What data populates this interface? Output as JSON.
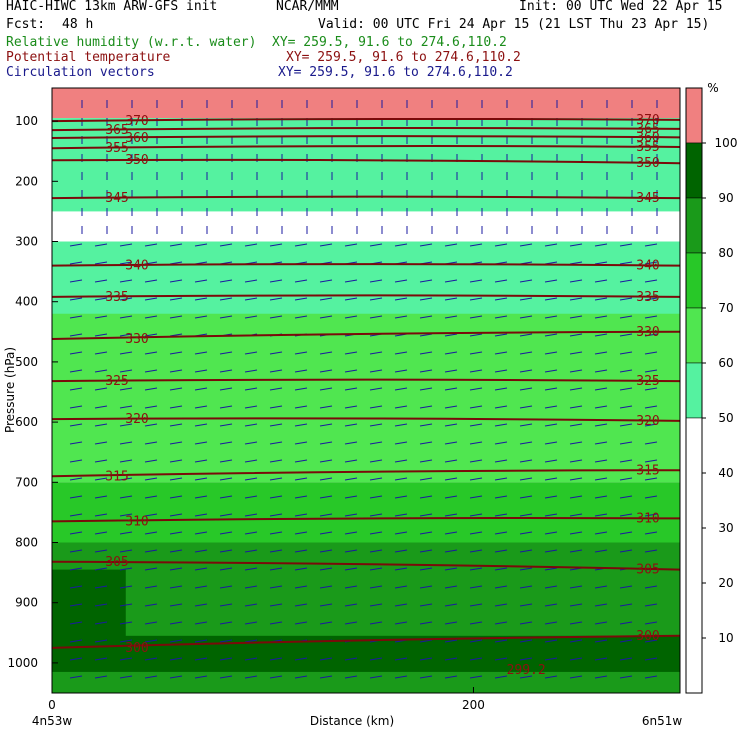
{
  "header": {
    "title": "HAIC-HIWC 13km ARW-GFS init",
    "org": "NCAR/MMM",
    "init": "Init: 00 UTC Wed 22 Apr 15",
    "fcst_label": "Fcst:",
    "fcst_value": "48 h",
    "valid": "Valid: 00 UTC Fri 24 Apr 15 (21 LST Thu 23 Apr 15)"
  },
  "fields": [
    {
      "label": "Relative humidity (w.r.t. water)",
      "xy": "XY= 259.5, 91.6 to 274.6,110.2",
      "color": "#1a8c1a"
    },
    {
      "label": "Potential temperature",
      "xy": "XY= 259.5, 91.6 to 274.6,110.2",
      "color": "#8c1010"
    },
    {
      "label": "Circulation vectors",
      "xy": "XY= 259.5, 91.6 to 274.6,110.2",
      "color": "#1a1a8c"
    }
  ],
  "chart_data": {
    "type": "heatmap",
    "xlabel": "Distance (km)",
    "ylabel": "Pressure (hPa)",
    "x_ticks": [
      0,
      200
    ],
    "x_endpoints": [
      "4n53w",
      "6n51w"
    ],
    "xlim": [
      0,
      298
    ],
    "y_ticks": [
      100,
      200,
      300,
      400,
      500,
      600,
      700,
      800,
      900,
      1000
    ],
    "ylim": [
      1050,
      45
    ],
    "colorbar": {
      "unit": "%",
      "ticks": [
        10,
        20,
        30,
        40,
        50,
        60,
        70,
        80,
        90,
        100
      ],
      "levels": [
        {
          "from": 100,
          "to": 110,
          "color": "#f08080"
        },
        {
          "from": 90,
          "to": 100,
          "color": "#006400"
        },
        {
          "from": 80,
          "to": 90,
          "color": "#1a9a1a"
        },
        {
          "from": 70,
          "to": 80,
          "color": "#28c828"
        },
        {
          "from": 60,
          "to": 70,
          "color": "#50e650"
        },
        {
          "from": 50,
          "to": 60,
          "color": "#55f2a0"
        },
        {
          "from": 0,
          "to": 50,
          "color": "#ffffff"
        }
      ]
    },
    "theta_contours": [
      {
        "value": 370,
        "label": "370",
        "p_left": 100,
        "p_right": 98
      },
      {
        "value": 365,
        "label": "365",
        "p_left": 115,
        "p_right": 113
      },
      {
        "value": 360,
        "label": "360",
        "p_left": 128,
        "p_right": 127
      },
      {
        "value": 355,
        "label": "355",
        "p_left": 145,
        "p_right": 143
      },
      {
        "value": 350,
        "label": "350",
        "p_left": 165,
        "p_right": 170
      },
      {
        "value": 345,
        "label": "345",
        "p_left": 228,
        "p_right": 228
      },
      {
        "value": 340,
        "label": "340",
        "p_left": 340,
        "p_right": 340
      },
      {
        "value": 335,
        "label": "335",
        "p_left": 392,
        "p_right": 392
      },
      {
        "value": 330,
        "label": "330",
        "p_left": 462,
        "p_right": 450
      },
      {
        "value": 325,
        "label": "325",
        "p_left": 532,
        "p_right": 532
      },
      {
        "value": 320,
        "label": "320",
        "p_left": 595,
        "p_right": 598
      },
      {
        "value": 315,
        "label": "315",
        "p_left": 690,
        "p_right": 680
      },
      {
        "value": 310,
        "label": "310",
        "p_left": 765,
        "p_right": 760
      },
      {
        "value": 305,
        "label": "305",
        "p_left": 832,
        "p_right": 845
      },
      {
        "value": 300,
        "label": "300",
        "p_left": 975,
        "p_right": 955
      }
    ],
    "annotations": [
      {
        "text": "299.2",
        "x": 225,
        "p": 1012
      }
    ],
    "rh_regions": [
      {
        "level": 100,
        "x0": 0,
        "x1": 298,
        "p_top": 45,
        "p_bottom": 95
      },
      {
        "level": 55,
        "x0": 0,
        "x1": 298,
        "p_top": 95,
        "p_bottom": 250
      },
      {
        "level": 55,
        "x0": 0,
        "x1": 298,
        "p_top": 300,
        "p_bottom": 470
      },
      {
        "level": 65,
        "x0": 0,
        "x1": 298,
        "p_top": 420,
        "p_bottom": 700
      },
      {
        "level": 75,
        "x0": 0,
        "x1": 298,
        "p_top": 700,
        "p_bottom": 1050
      },
      {
        "level": 85,
        "x0": 0,
        "x1": 298,
        "p_top": 800,
        "p_bottom": 1050
      },
      {
        "level": 95,
        "x0": 0,
        "x1": 35,
        "p_top": 845,
        "p_bottom": 960
      },
      {
        "level": 95,
        "x0": 0,
        "x1": 298,
        "p_top": 955,
        "p_bottom": 1015
      }
    ]
  }
}
